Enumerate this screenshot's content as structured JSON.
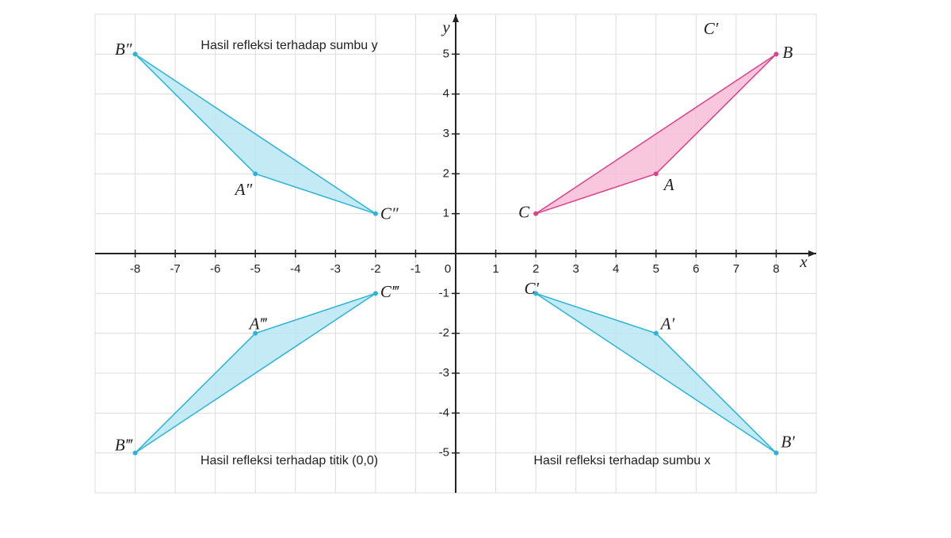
{
  "axes": {
    "xlim": [
      -9,
      9
    ],
    "ylim": [
      -6,
      6
    ],
    "xticks": [
      -8,
      -7,
      -6,
      -5,
      -4,
      -3,
      -2,
      -1,
      1,
      2,
      3,
      4,
      5,
      6,
      7,
      8
    ],
    "yticks": [
      5,
      4,
      3,
      2,
      1,
      -1,
      -2,
      -3,
      -4,
      -5
    ],
    "origin_label": "0",
    "x_label": "x",
    "y_label": "y"
  },
  "triangles": [
    {
      "caption": null,
      "color": "#e0408a",
      "fill": "#f7bcd7",
      "vertices": [
        {
          "label": "A",
          "x": 5,
          "y": 2
        },
        {
          "label": "B",
          "x": 8,
          "y": 5
        },
        {
          "label": "C",
          "x": 2,
          "y": 1
        }
      ]
    },
    {
      "caption": "Hasil refleksi terhadap sumbu y",
      "color": "#2ab4d8",
      "fill": "#b8e6f3",
      "vertices": [
        {
          "label": "A″",
          "x": -5,
          "y": 2
        },
        {
          "label": "B″",
          "x": -8,
          "y": 5
        },
        {
          "label": "C″",
          "x": -2,
          "y": 1
        }
      ]
    },
    {
      "caption": "Hasil refleksi terhadap sumbu x",
      "color": "#2ab4d8",
      "fill": "#b8e6f3",
      "vertices": [
        {
          "label": "A′",
          "x": 5,
          "y": -2
        },
        {
          "label": "B′",
          "x": 8,
          "y": -5
        },
        {
          "label": "C′",
          "x": 2,
          "y": -1
        }
      ]
    },
    {
      "caption": "Hasil refleksi terhadap titik (0,0)",
      "color": "#2ab4d8",
      "fill": "#b8e6f3",
      "vertices": [
        {
          "label": "A‴",
          "x": -5,
          "y": -2
        },
        {
          "label": "B‴",
          "x": -8,
          "y": -5
        },
        {
          "label": "C‴",
          "x": -2,
          "y": -1
        }
      ]
    }
  ],
  "stray_label": "C′"
}
